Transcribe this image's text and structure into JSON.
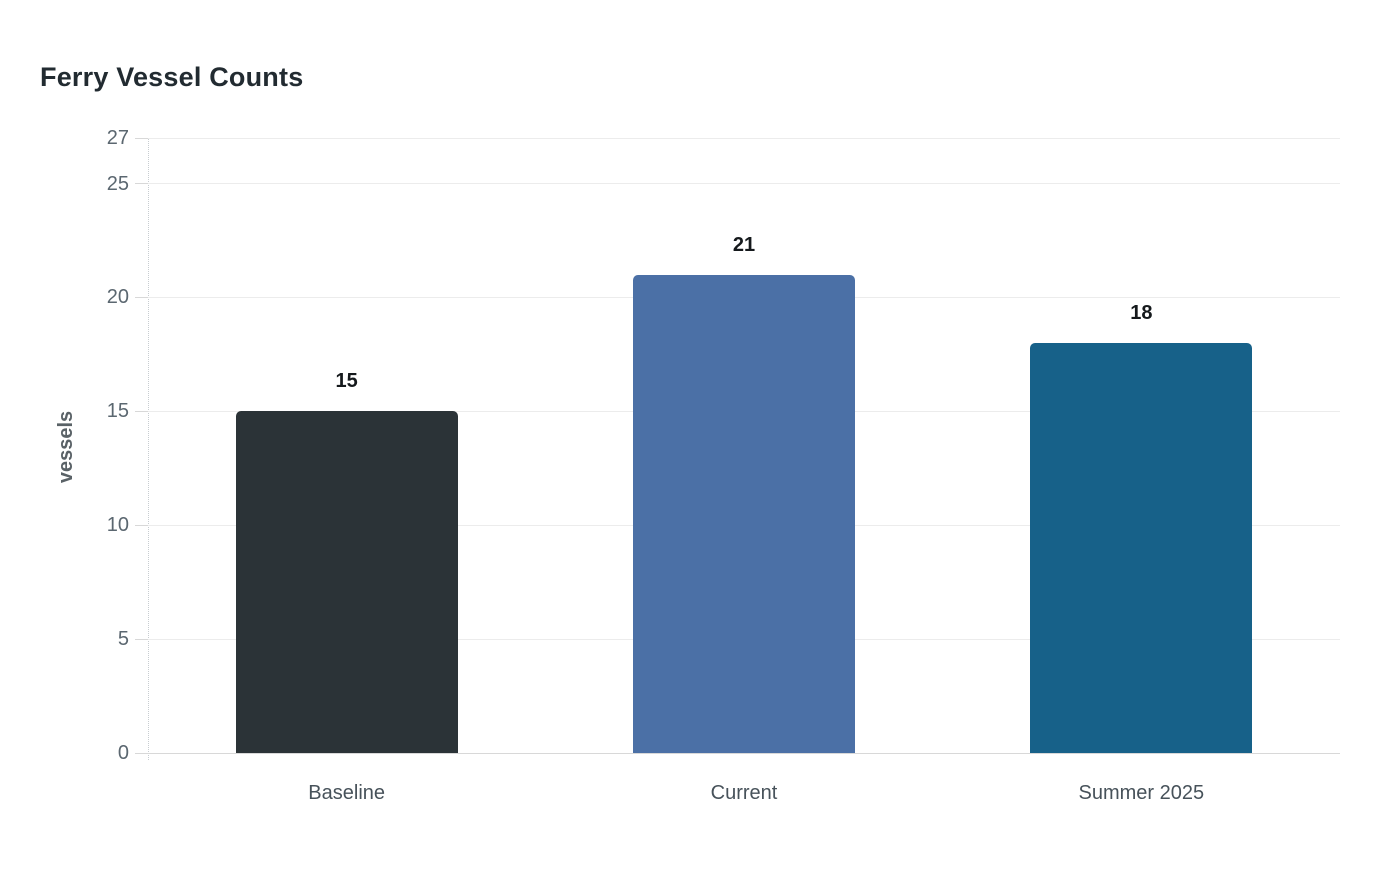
{
  "page": {
    "background": "#ffffff"
  },
  "chart_data": {
    "type": "bar",
    "title": "Ferry Vessel Counts",
    "xlabel": "",
    "ylabel": "vessels",
    "categories": [
      "Baseline",
      "Current",
      "Summer 2025"
    ],
    "values": [
      15,
      21,
      18
    ],
    "value_labels": [
      "15",
      "21",
      "18"
    ],
    "bar_colors": [
      "#2b3337",
      "#4b70a6",
      "#176189"
    ],
    "yticks": [
      0,
      5,
      10,
      15,
      20,
      25,
      27
    ],
    "ylim": [
      0,
      27
    ],
    "grid": "horizontal-only",
    "legend": "none",
    "theme": {
      "title_color": "#222b31",
      "y_tick_color": "#5b6770",
      "x_tick_color": "#47525a",
      "value_label_color": "#15191c",
      "axis_label_color": "#5a6267",
      "grid_color": "#ececec",
      "zero_line_color": "#d8d8d8",
      "axis_dotted_line_color": "#c8cdd1"
    }
  }
}
